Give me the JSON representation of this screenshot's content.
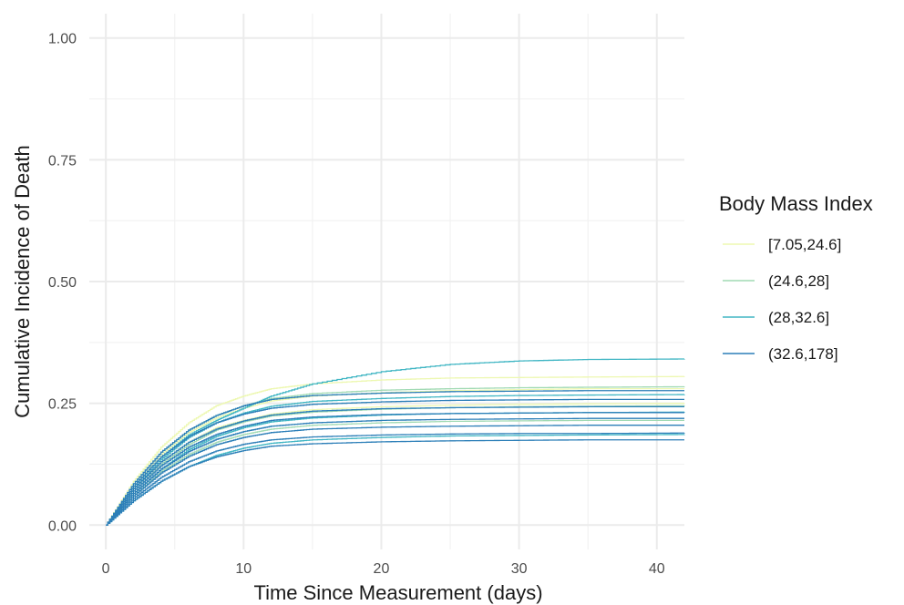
{
  "chart_data": {
    "type": "line",
    "xlabel": "Time Since Measurement (days)",
    "ylabel": "Cumulative Incidence of Death",
    "xlim": [
      -1.2,
      42
    ],
    "ylim": [
      -0.05,
      1.05
    ],
    "x_ticks": [
      0,
      10,
      20,
      30,
      40
    ],
    "x_tick_labels": [
      "0",
      "10",
      "20",
      "30",
      "40"
    ],
    "y_ticks": [
      0.0,
      0.25,
      0.5,
      0.75,
      1.0
    ],
    "y_tick_labels": [
      "0.00",
      "0.25",
      "0.50",
      "0.75",
      "1.00"
    ],
    "grid": true,
    "legend": {
      "title": "Body Mass Index",
      "position": "right",
      "entries": [
        {
          "label": "[7.05,24.6]",
          "color": "#edf8b1"
        },
        {
          "label": "(24.6,28]",
          "color": "#a1dab4"
        },
        {
          "label": "(28,32.6]",
          "color": "#41b6c4"
        },
        {
          "label": "(32.6,178]",
          "color": "#2c7fb8"
        }
      ]
    },
    "series": [
      {
        "group": 0,
        "color": "#edf8b1",
        "x": [
          0,
          2,
          4,
          6,
          8,
          10,
          12,
          15,
          20,
          25,
          30,
          35,
          42
        ],
        "y": [
          0,
          0.09,
          0.16,
          0.21,
          0.245,
          0.265,
          0.28,
          0.29,
          0.298,
          0.302,
          0.303,
          0.304,
          0.305
        ]
      },
      {
        "group": 0,
        "color": "#edf8b1",
        "x": [
          0,
          2,
          4,
          6,
          8,
          10,
          12,
          15,
          20,
          25,
          30,
          35,
          42
        ],
        "y": [
          0,
          0.08,
          0.145,
          0.19,
          0.22,
          0.24,
          0.255,
          0.265,
          0.272,
          0.276,
          0.278,
          0.28,
          0.28
        ]
      },
      {
        "group": 0,
        "color": "#edf8b1",
        "x": [
          0,
          2,
          4,
          6,
          8,
          10,
          12,
          15,
          20,
          25,
          30,
          35,
          42
        ],
        "y": [
          0,
          0.075,
          0.13,
          0.17,
          0.2,
          0.215,
          0.228,
          0.237,
          0.243,
          0.246,
          0.248,
          0.249,
          0.25
        ]
      },
      {
        "group": 1,
        "color": "#a1dab4",
        "x": [
          0,
          2,
          4,
          6,
          8,
          10,
          12,
          15,
          20,
          25,
          30,
          35,
          42
        ],
        "y": [
          0,
          0.085,
          0.15,
          0.195,
          0.225,
          0.245,
          0.26,
          0.27,
          0.277,
          0.28,
          0.282,
          0.283,
          0.284
        ]
      },
      {
        "group": 1,
        "color": "#a1dab4",
        "x": [
          0,
          2,
          4,
          6,
          8,
          10,
          12,
          15,
          20,
          25,
          30,
          35,
          42
        ],
        "y": [
          0,
          0.07,
          0.125,
          0.165,
          0.195,
          0.212,
          0.224,
          0.232,
          0.238,
          0.241,
          0.243,
          0.244,
          0.245
        ]
      },
      {
        "group": 1,
        "color": "#a1dab4",
        "x": [
          0,
          2,
          4,
          6,
          8,
          10,
          12,
          15,
          20,
          25,
          30,
          35,
          42
        ],
        "y": [
          0,
          0.06,
          0.11,
          0.145,
          0.17,
          0.186,
          0.197,
          0.205,
          0.21,
          0.213,
          0.214,
          0.215,
          0.215
        ]
      },
      {
        "group": 2,
        "color": "#41b6c4",
        "x": [
          0,
          2,
          4,
          6,
          8,
          10,
          12,
          15,
          20,
          25,
          30,
          35,
          42
        ],
        "y": [
          0,
          0.08,
          0.14,
          0.185,
          0.215,
          0.24,
          0.265,
          0.29,
          0.315,
          0.33,
          0.337,
          0.34,
          0.341
        ]
      },
      {
        "group": 2,
        "color": "#41b6c4",
        "x": [
          0,
          2,
          4,
          6,
          8,
          10,
          12,
          15,
          20,
          25,
          30,
          35,
          42
        ],
        "y": [
          0,
          0.075,
          0.135,
          0.18,
          0.21,
          0.23,
          0.244,
          0.254,
          0.26,
          0.264,
          0.266,
          0.267,
          0.268
        ]
      },
      {
        "group": 2,
        "color": "#41b6c4",
        "x": [
          0,
          2,
          4,
          6,
          8,
          10,
          12,
          15,
          20,
          25,
          30,
          35,
          42
        ],
        "y": [
          0,
          0.065,
          0.115,
          0.155,
          0.182,
          0.2,
          0.212,
          0.22,
          0.226,
          0.229,
          0.23,
          0.231,
          0.232
        ]
      },
      {
        "group": 2,
        "color": "#41b6c4",
        "x": [
          0,
          2,
          4,
          6,
          8,
          10,
          12,
          15,
          20,
          25,
          30,
          35,
          42
        ],
        "y": [
          0,
          0.05,
          0.09,
          0.12,
          0.143,
          0.158,
          0.168,
          0.175,
          0.18,
          0.183,
          0.184,
          0.185,
          0.186
        ]
      },
      {
        "group": 3,
        "color": "#2c7fb8",
        "x": [
          0,
          2,
          4,
          6,
          8,
          10,
          12,
          15,
          20,
          25,
          30,
          35,
          42
        ],
        "y": [
          0,
          0.085,
          0.15,
          0.195,
          0.225,
          0.245,
          0.258,
          0.266,
          0.271,
          0.274,
          0.275,
          0.276,
          0.276
        ]
      },
      {
        "group": 3,
        "color": "#2c7fb8",
        "x": [
          0,
          2,
          4,
          6,
          8,
          10,
          12,
          15,
          20,
          25,
          30,
          35,
          42
        ],
        "y": [
          0,
          0.08,
          0.14,
          0.182,
          0.21,
          0.228,
          0.24,
          0.248,
          0.253,
          0.256,
          0.257,
          0.258,
          0.258
        ]
      },
      {
        "group": 3,
        "color": "#2c7fb8",
        "x": [
          0,
          2,
          4,
          6,
          8,
          10,
          12,
          15,
          20,
          25,
          30,
          35,
          42
        ],
        "y": [
          0,
          0.075,
          0.13,
          0.17,
          0.197,
          0.214,
          0.226,
          0.234,
          0.239,
          0.241,
          0.242,
          0.243,
          0.243
        ]
      },
      {
        "group": 3,
        "color": "#2c7fb8",
        "x": [
          0,
          2,
          4,
          6,
          8,
          10,
          12,
          15,
          20,
          25,
          30,
          35,
          42
        ],
        "y": [
          0,
          0.07,
          0.122,
          0.16,
          0.186,
          0.203,
          0.215,
          0.222,
          0.227,
          0.229,
          0.23,
          0.231,
          0.231
        ]
      },
      {
        "group": 3,
        "color": "#2c7fb8",
        "x": [
          0,
          2,
          4,
          6,
          8,
          10,
          12,
          15,
          20,
          25,
          30,
          35,
          42
        ],
        "y": [
          0,
          0.065,
          0.115,
          0.151,
          0.176,
          0.192,
          0.203,
          0.21,
          0.215,
          0.217,
          0.218,
          0.219,
          0.219
        ]
      },
      {
        "group": 3,
        "color": "#2c7fb8",
        "x": [
          0,
          2,
          4,
          6,
          8,
          10,
          12,
          15,
          20,
          25,
          30,
          35,
          42
        ],
        "y": [
          0,
          0.06,
          0.107,
          0.141,
          0.165,
          0.18,
          0.19,
          0.197,
          0.201,
          0.203,
          0.204,
          0.205,
          0.205
        ]
      },
      {
        "group": 3,
        "color": "#2c7fb8",
        "x": [
          0,
          2,
          4,
          6,
          8,
          10,
          12,
          15,
          20,
          25,
          30,
          35,
          42
        ],
        "y": [
          0,
          0.055,
          0.098,
          0.13,
          0.152,
          0.166,
          0.175,
          0.181,
          0.185,
          0.187,
          0.188,
          0.188,
          0.189
        ]
      },
      {
        "group": 3,
        "color": "#2c7fb8",
        "x": [
          0,
          2,
          4,
          6,
          8,
          10,
          12,
          15,
          20,
          25,
          30,
          35,
          42
        ],
        "y": [
          0,
          0.05,
          0.09,
          0.12,
          0.14,
          0.153,
          0.162,
          0.167,
          0.171,
          0.173,
          0.174,
          0.175,
          0.175
        ]
      }
    ]
  }
}
